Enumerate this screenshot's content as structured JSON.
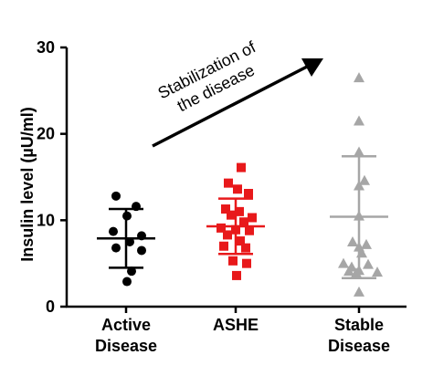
{
  "chart_data": {
    "type": "scatter",
    "ylabel": "Insulin level (µU/ml)",
    "ylim": [
      0,
      30
    ],
    "yticks": [
      {
        "value": 0,
        "label": "0"
      },
      {
        "value": 10,
        "label": "10"
      },
      {
        "value": 20,
        "label": "20"
      },
      {
        "value": 30,
        "label": "30"
      }
    ],
    "categories": [
      {
        "line1": "Active",
        "line2": "Disease"
      },
      {
        "line1": "ASHE",
        "line2": ""
      },
      {
        "line1": "Stable",
        "line2": "Disease"
      }
    ],
    "annotation": {
      "line1": "Stabilization of",
      "line2": "the disease"
    },
    "groups": [
      {
        "category_index": 0,
        "marker": "circle",
        "color": "#000000",
        "mean": 7.9,
        "sd_low": 4.5,
        "sd_high": 11.3,
        "points": [
          {
            "offset": -0.55,
            "y": 12.8
          },
          {
            "offset": 0.55,
            "y": 11.6
          },
          {
            "offset": 0.05,
            "y": 10.5
          },
          {
            "offset": -0.7,
            "y": 8.7
          },
          {
            "offset": 0.85,
            "y": 8.2
          },
          {
            "offset": 0.2,
            "y": 7.5
          },
          {
            "offset": -0.55,
            "y": 6.8
          },
          {
            "offset": 0.85,
            "y": 6.5
          },
          {
            "offset": 0.3,
            "y": 4.1
          },
          {
            "offset": 0.05,
            "y": 2.9
          }
        ]
      },
      {
        "category_index": 1,
        "marker": "square",
        "color": "#e8191b",
        "mean": 9.3,
        "sd_low": 6.1,
        "sd_high": 12.5,
        "points": [
          {
            "offset": 0.3,
            "y": 16.1
          },
          {
            "offset": -0.4,
            "y": 14.3
          },
          {
            "offset": 0.1,
            "y": 13.6
          },
          {
            "offset": 0.7,
            "y": 13.1
          },
          {
            "offset": -0.55,
            "y": 11.3
          },
          {
            "offset": 0.2,
            "y": 11.0
          },
          {
            "offset": 0.9,
            "y": 10.3
          },
          {
            "offset": -0.25,
            "y": 10.6
          },
          {
            "offset": 0.45,
            "y": 9.8
          },
          {
            "offset": -0.8,
            "y": 9.1
          },
          {
            "offset": 0.0,
            "y": 8.9
          },
          {
            "offset": 0.75,
            "y": 8.8
          },
          {
            "offset": -0.45,
            "y": 8.3
          },
          {
            "offset": 0.25,
            "y": 7.6
          },
          {
            "offset": -0.65,
            "y": 7.0
          },
          {
            "offset": 0.55,
            "y": 6.8
          },
          {
            "offset": -0.15,
            "y": 5.3
          },
          {
            "offset": 0.6,
            "y": 5.0
          },
          {
            "offset": 0.05,
            "y": 3.6
          }
        ]
      },
      {
        "category_index": 2,
        "marker": "triangle",
        "color": "#a6a6a6",
        "mean": 10.4,
        "sd_low": 3.3,
        "sd_high": 17.4,
        "points": [
          {
            "offset": 0.0,
            "y": 26.5
          },
          {
            "offset": 0.0,
            "y": 21.5
          },
          {
            "offset": 0.0,
            "y": 17.9
          },
          {
            "offset": 0.3,
            "y": 14.6
          },
          {
            "offset": 0.0,
            "y": 14.0
          },
          {
            "offset": 0.0,
            "y": 10.5
          },
          {
            "offset": -0.35,
            "y": 7.5
          },
          {
            "offset": 0.4,
            "y": 7.2
          },
          {
            "offset": 0.0,
            "y": 6.9
          },
          {
            "offset": 0.15,
            "y": 6.2
          },
          {
            "offset": -0.85,
            "y": 5.0
          },
          {
            "offset": -0.4,
            "y": 4.6
          },
          {
            "offset": 0.5,
            "y": 4.9
          },
          {
            "offset": -0.55,
            "y": 4.1
          },
          {
            "offset": 0.0,
            "y": 4.2
          },
          {
            "offset": 1.0,
            "y": 4.0
          },
          {
            "offset": -0.15,
            "y": 3.9
          },
          {
            "offset": 0.0,
            "y": 1.7
          }
        ]
      }
    ]
  }
}
